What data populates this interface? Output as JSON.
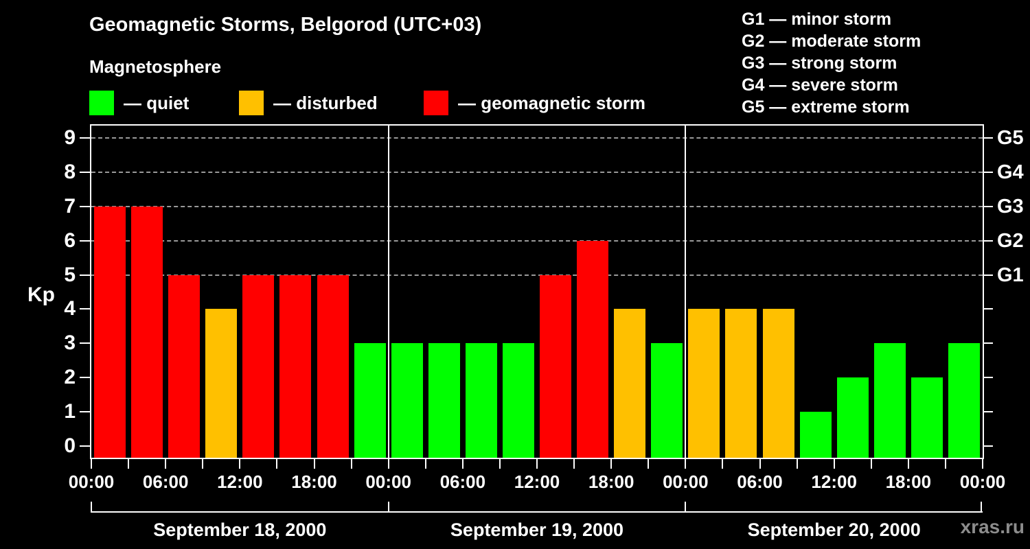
{
  "title": "Geomagnetic Storms, Belgorod (UTC+03)",
  "subtitle": "Magnetosphere",
  "legend": [
    {
      "status": "quiet",
      "label": "— quiet",
      "color": "#00ff00"
    },
    {
      "status": "disturbed",
      "label": "— disturbed",
      "color": "#ffc000"
    },
    {
      "status": "storm",
      "label": "— geomagnetic storm",
      "color": "#ff0000"
    }
  ],
  "g_scale_legend": [
    {
      "code": "G1",
      "text": "G1 — minor storm"
    },
    {
      "code": "G2",
      "text": "G2 — moderate storm"
    },
    {
      "code": "G3",
      "text": "G3 — strong storm"
    },
    {
      "code": "G4",
      "text": "G4 — severe storm"
    },
    {
      "code": "G5",
      "text": "G5 — extreme storm"
    }
  ],
  "watermark": "xras.ru",
  "chart_data": {
    "type": "bar",
    "title": "Geomagnetic Storms, Belgorod (UTC+03)",
    "subtitle": "Magnetosphere",
    "ylabel": "Kp",
    "ylim": [
      0,
      9.6
    ],
    "y_ticks": [
      0,
      1,
      2,
      3,
      4,
      5,
      6,
      7,
      8,
      9
    ],
    "grid_levels_kp": [
      5,
      6,
      7,
      8,
      9
    ],
    "grid_style": "dashed",
    "right_axis_labels": [
      {
        "kp": 5,
        "label": "G1"
      },
      {
        "kp": 6,
        "label": "G2"
      },
      {
        "kp": 7,
        "label": "G3"
      },
      {
        "kp": 8,
        "label": "G4"
      },
      {
        "kp": 9,
        "label": "G5"
      }
    ],
    "bar_interval_hours": 3,
    "x_tick_step_hours": 3,
    "x_label_step_hours": 6,
    "x_tick_labels_per_day": [
      "00:00",
      "06:00",
      "12:00",
      "18:00"
    ],
    "x_final_label": "00:00",
    "days": [
      {
        "date": "September 18, 2000",
        "kp": [
          7,
          7,
          5,
          4,
          5,
          5,
          5,
          3
        ]
      },
      {
        "date": "September 19, 2000",
        "kp": [
          3,
          3,
          3,
          3,
          5,
          6,
          4,
          3
        ]
      },
      {
        "date": "September 20, 2000",
        "kp": [
          4,
          4,
          4,
          1,
          2,
          3,
          2,
          3
        ]
      }
    ],
    "status_rule": {
      "quiet_max_kp": 3,
      "disturbed_kp": 4,
      "storm_min_kp": 5
    },
    "colors": {
      "quiet": "#00ff00",
      "disturbed": "#ffc000",
      "storm": "#ff0000",
      "grid": "#9a9a9a",
      "axis": "#ffffff",
      "background": "#000000",
      "watermark": "#8c8c8c"
    },
    "legend_position": "top-left",
    "g_legend_position": "top-right"
  }
}
